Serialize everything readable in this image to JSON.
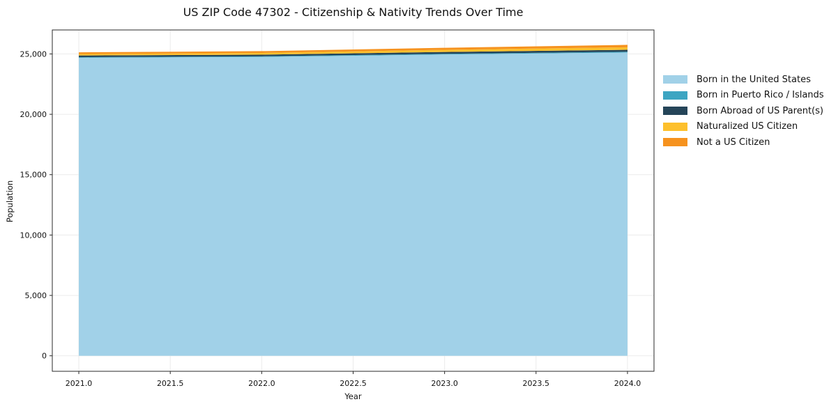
{
  "title": "US ZIP Code 47302 - Citizenship & Nativity Trends Over Time",
  "chart_data": {
    "type": "area",
    "stacked": true,
    "title": "US ZIP Code 47302 - Citizenship & Nativity Trends Over Time",
    "xlabel": "Year",
    "ylabel": "Population",
    "x": [
      2021,
      2022,
      2023,
      2024
    ],
    "series": [
      {
        "name": "Born in the United States",
        "color": "#a1d1e8",
        "values": [
          24680,
          24750,
          24950,
          25120
        ]
      },
      {
        "name": "Born in Puerto Rico / Islands",
        "color": "#3da5c2",
        "values": [
          50,
          50,
          60,
          60
        ]
      },
      {
        "name": "Born Abroad of US Parent(s)",
        "color": "#254559",
        "values": [
          140,
          140,
          150,
          160
        ]
      },
      {
        "name": "Naturalized US Citizen",
        "color": "#fdc02c",
        "values": [
          120,
          140,
          180,
          210
        ]
      },
      {
        "name": "Not a US Citizen",
        "color": "#f6921e",
        "values": [
          140,
          150,
          170,
          200
        ]
      }
    ],
    "xlim": [
      2020.855,
      2024.145
    ],
    "ylim": [
      -1285,
      26985
    ],
    "xticks": {
      "values": [
        2021.0,
        2021.5,
        2022.0,
        2022.5,
        2023.0,
        2023.5,
        2024.0
      ],
      "labels": [
        "2021.0",
        "2021.5",
        "2022.0",
        "2022.5",
        "2023.0",
        "2023.5",
        "2024.0"
      ]
    },
    "yticks": {
      "values": [
        0,
        5000,
        10000,
        15000,
        20000,
        25000
      ],
      "labels": [
        "0",
        "5,000",
        "10,000",
        "15,000",
        "20,000",
        "25,000"
      ]
    },
    "grid": true,
    "legend_position": "right-outside",
    "colors": {
      "spine": "#2a2a2a",
      "gridline": "#ebebeb",
      "tick": "#2a2a2a",
      "background": "#ffffff"
    }
  }
}
